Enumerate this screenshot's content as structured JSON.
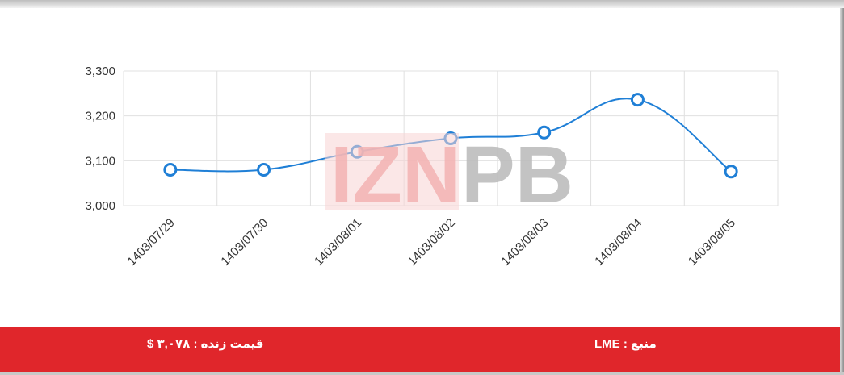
{
  "chart_data": {
    "type": "line",
    "x": [
      "1403/07/29",
      "1403/07/30",
      "1403/08/01",
      "1403/08/02",
      "1403/08/03",
      "1403/08/04",
      "1403/08/05"
    ],
    "series": [
      {
        "values": [
          3080,
          3080,
          3120,
          3150,
          3163,
          3236,
          3076
        ]
      }
    ],
    "ylim": [
      3000,
      3300
    ],
    "yticks": [
      3000,
      3100,
      3200,
      3300
    ],
    "ytick_labels": [
      "3,000",
      "3,100",
      "3,200",
      "3,300"
    ],
    "grid": true,
    "line_color": "#1f7fd6",
    "marker": "open-circle"
  },
  "watermark": {
    "text_light": "IZN",
    "text_dark": "PB",
    "light_color": "#f3b3b3",
    "dark_color": "#bdbdbd"
  },
  "footer": {
    "source_label": "منبع : LME",
    "price_label": "قیمت زنده : ۳,۰۷۸ $",
    "background": "#e0262b"
  }
}
